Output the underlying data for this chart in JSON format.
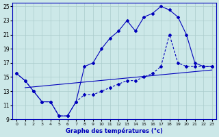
{
  "xlabel": "Graphe des températures (°c)",
  "xlim": [
    -0.5,
    23.5
  ],
  "ylim": [
    9,
    25.5
  ],
  "xticks": [
    0,
    1,
    2,
    3,
    4,
    5,
    6,
    7,
    8,
    9,
    10,
    11,
    12,
    13,
    14,
    15,
    16,
    17,
    18,
    19,
    20,
    21,
    22,
    23
  ],
  "yticks": [
    9,
    11,
    13,
    15,
    17,
    19,
    21,
    23,
    25
  ],
  "bg_color": "#cce8e8",
  "line_color": "#0000bb",
  "grid_color": "#aacccc",
  "curve1_x": [
    0,
    1,
    2,
    3,
    4,
    5,
    6,
    7,
    8,
    9,
    10,
    11,
    12,
    13,
    14,
    15,
    16,
    17,
    18,
    19,
    20,
    21,
    22,
    23
  ],
  "curve1_y": [
    15.5,
    14.5,
    13.0,
    11.5,
    11.5,
    9.5,
    9.5,
    11.5,
    16.5,
    17.0,
    19.0,
    20.5,
    21.5,
    23.0,
    21.5,
    23.5,
    24.0,
    25.0,
    24.5,
    23.5,
    21.0,
    17.0,
    16.5,
    16.5
  ],
  "curve2_x": [
    0,
    1,
    2,
    3,
    4,
    5,
    6,
    7,
    8,
    9,
    10,
    11,
    12,
    13,
    14,
    15,
    16,
    17,
    18,
    19,
    20,
    21,
    22,
    23
  ],
  "curve2_y": [
    15.5,
    14.5,
    13.0,
    11.5,
    11.5,
    9.5,
    9.5,
    11.5,
    12.5,
    12.5,
    13.0,
    13.5,
    14.0,
    14.5,
    14.5,
    15.0,
    15.5,
    16.5,
    21.0,
    17.0,
    16.5,
    16.5,
    16.5,
    16.5
  ],
  "curve3_x": [
    1,
    23
  ],
  "curve3_y": [
    13.5,
    16.0
  ]
}
